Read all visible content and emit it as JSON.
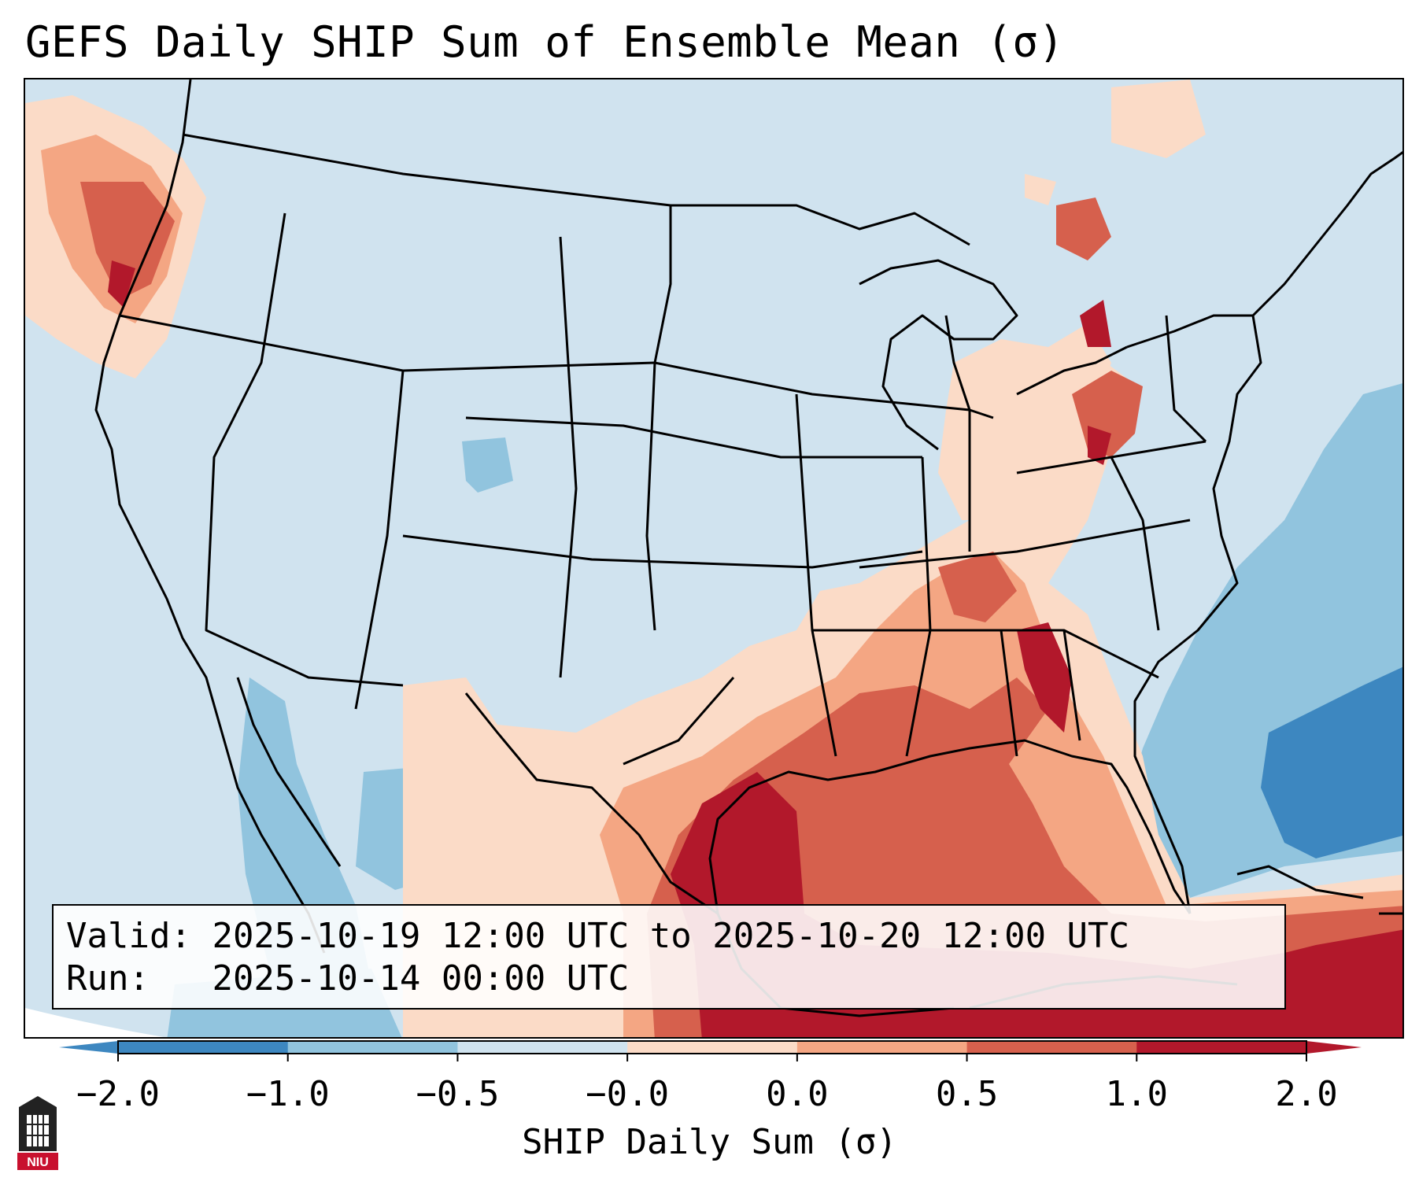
{
  "title": "GEFS Daily SHIP Sum of Ensemble Mean (σ)",
  "info": {
    "valid_label": "Valid:",
    "valid_value": "2025-10-19 12:00 UTC to 2025-10-20 12:00 UTC",
    "run_label": "Run:",
    "run_value": "2025-10-14 00:00 UTC"
  },
  "colorbar": {
    "label": "SHIP Daily Sum (σ)",
    "ticks": [
      "−2.0",
      "−1.0",
      "−0.5",
      "−0.0",
      "0.0",
      "0.5",
      "1.0",
      "2.0"
    ],
    "colors": [
      "#3d87c0",
      "#91c4de",
      "#d0e3ef",
      "#fbdbc7",
      "#f4a683",
      "#d6604d",
      "#b2182b"
    ]
  },
  "logo": {
    "text": "NIU"
  }
}
